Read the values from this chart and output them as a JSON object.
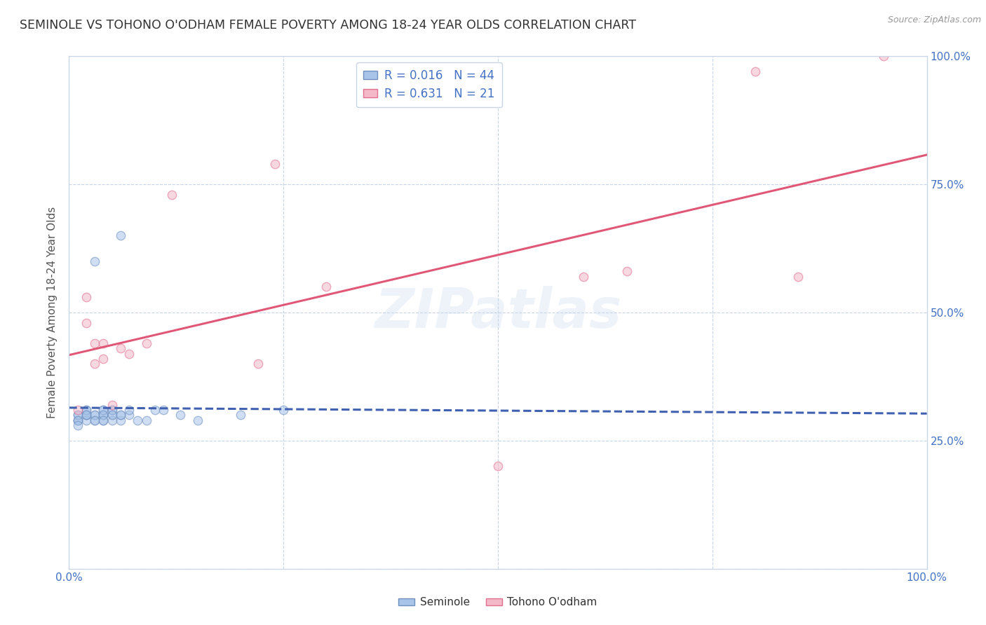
{
  "title": "SEMINOLE VS TOHONO O'ODHAM FEMALE POVERTY AMONG 18-24 YEAR OLDS CORRELATION CHART",
  "source": "Source: ZipAtlas.com",
  "ylabel": "Female Poverty Among 18-24 Year Olds",
  "xlim": [
    0.0,
    1.0
  ],
  "ylim": [
    0.0,
    1.0
  ],
  "xticks": [
    0.0,
    0.25,
    0.5,
    0.75,
    1.0
  ],
  "yticks": [
    0.0,
    0.25,
    0.5,
    0.75,
    1.0
  ],
  "xtick_labels": [
    "0.0%",
    "",
    "",
    "",
    "100.0%"
  ],
  "ytick_labels_right": [
    "",
    "25.0%",
    "50.0%",
    "75.0%",
    "100.0%"
  ],
  "background_color": "#ffffff",
  "grid_color": "#c8d4e8",
  "watermark": "ZIPatlas",
  "title_color": "#333333",
  "title_fontsize": 12.5,
  "axis_label_color": "#555555",
  "tick_label_color": "#4472c4",
  "seminole_color": "#a8c4e8",
  "tohono_color": "#f4b8c8",
  "seminole_edge": "#7090c0",
  "tohono_edge": "#e07090",
  "seminole_R": 0.016,
  "seminole_N": 44,
  "tohono_R": 0.631,
  "tohono_N": 21,
  "seminole_line_color": "#4060b0",
  "tohono_line_color": "#e05878",
  "seminole_line_style": "--",
  "tohono_line_style": "-",
  "seminole_points_x": [
    0.02,
    0.04,
    0.04,
    0.02,
    0.03,
    0.03,
    0.04,
    0.04,
    0.05,
    0.05,
    0.05,
    0.06,
    0.06,
    0.07,
    0.01,
    0.02,
    0.02,
    0.02,
    0.02,
    0.03,
    0.03,
    0.04,
    0.04,
    0.04,
    0.05,
    0.05,
    0.06,
    0.07,
    0.08,
    0.09,
    0.11,
    0.13,
    0.15,
    0.2,
    0.25,
    0.01,
    0.01,
    0.01,
    0.01,
    0.01,
    0.02,
    0.1,
    0.03,
    0.06
  ],
  "seminole_points_y": [
    0.3,
    0.3,
    0.29,
    0.31,
    0.3,
    0.29,
    0.3,
    0.31,
    0.3,
    0.31,
    0.29,
    0.29,
    0.3,
    0.3,
    0.29,
    0.3,
    0.29,
    0.3,
    0.31,
    0.3,
    0.29,
    0.31,
    0.3,
    0.29,
    0.31,
    0.3,
    0.3,
    0.31,
    0.29,
    0.29,
    0.31,
    0.3,
    0.29,
    0.3,
    0.31,
    0.3,
    0.29,
    0.3,
    0.29,
    0.28,
    0.3,
    0.31,
    0.6,
    0.65
  ],
  "tohono_points_x": [
    0.01,
    0.02,
    0.02,
    0.03,
    0.03,
    0.04,
    0.04,
    0.05,
    0.06,
    0.09,
    0.07,
    0.22,
    0.24,
    0.3,
    0.6,
    0.65,
    0.8,
    0.85,
    0.95,
    0.5,
    0.12
  ],
  "tohono_points_y": [
    0.31,
    0.53,
    0.48,
    0.44,
    0.4,
    0.44,
    0.41,
    0.32,
    0.43,
    0.44,
    0.42,
    0.4,
    0.79,
    0.55,
    0.57,
    0.58,
    0.97,
    0.57,
    1.0,
    0.2,
    0.73
  ],
  "marker_size": 80,
  "marker_alpha": 0.55
}
